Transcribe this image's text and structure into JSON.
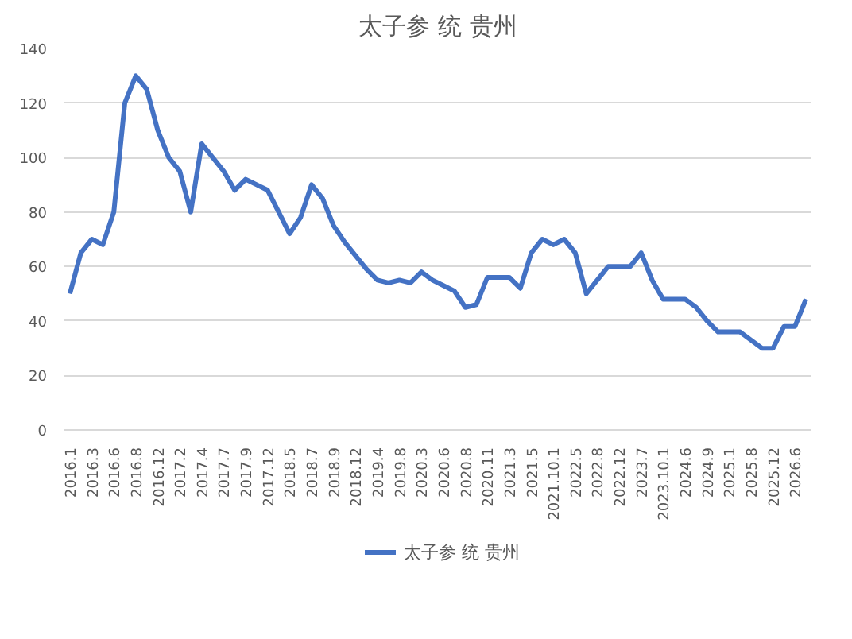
{
  "chart_data": {
    "type": "line",
    "title": "太子参 统 贵州",
    "categories": [
      "2016.1",
      null,
      "2016.3",
      null,
      "2016.6",
      null,
      "2016.8",
      null,
      "2016.12",
      null,
      "2017.2",
      null,
      "2017.4",
      null,
      "2017.7",
      null,
      "2017.9",
      null,
      "2017.12",
      null,
      "2018.5",
      null,
      "2018.7",
      null,
      "2018.9",
      null,
      "2018.12",
      null,
      "2019.4",
      null,
      "2019.8",
      null,
      "2020.3",
      null,
      "2020.6",
      null,
      "2020.8",
      null,
      "2020.11",
      null,
      "2021.3",
      null,
      "2021.5",
      null,
      "2021.10.1",
      null,
      "2022.5",
      null,
      "2022.8",
      null,
      "2022.12",
      null,
      "2023.7",
      null,
      "2023.10.1",
      null,
      "2024.6",
      null,
      "2024.9",
      null,
      "2025.1",
      null,
      "2025.8",
      null,
      "2025.12",
      null,
      "2026.6",
      null
    ],
    "series": [
      {
        "name": "太子参 统 贵州",
        "color": "#4472c4",
        "values": [
          50,
          65,
          70,
          68,
          80,
          120,
          130,
          125,
          110,
          100,
          95,
          80,
          105,
          100,
          95,
          88,
          92,
          90,
          88,
          80,
          72,
          78,
          90,
          85,
          75,
          69,
          64,
          59,
          55,
          54,
          55,
          54,
          58,
          55,
          53,
          51,
          45,
          46,
          56,
          56,
          56,
          52,
          65,
          70,
          68,
          70,
          65,
          50,
          55,
          60,
          60,
          60,
          65,
          55,
          48,
          48,
          48,
          45,
          40,
          36,
          36,
          36,
          33,
          30,
          30,
          38,
          38,
          48
        ]
      }
    ],
    "ylim": [
      0,
      140
    ],
    "yticks": [
      0,
      20,
      40,
      60,
      80,
      100,
      120,
      140
    ],
    "grid": "y",
    "legend": "bottom",
    "marker": "none",
    "line_style": "solid"
  }
}
